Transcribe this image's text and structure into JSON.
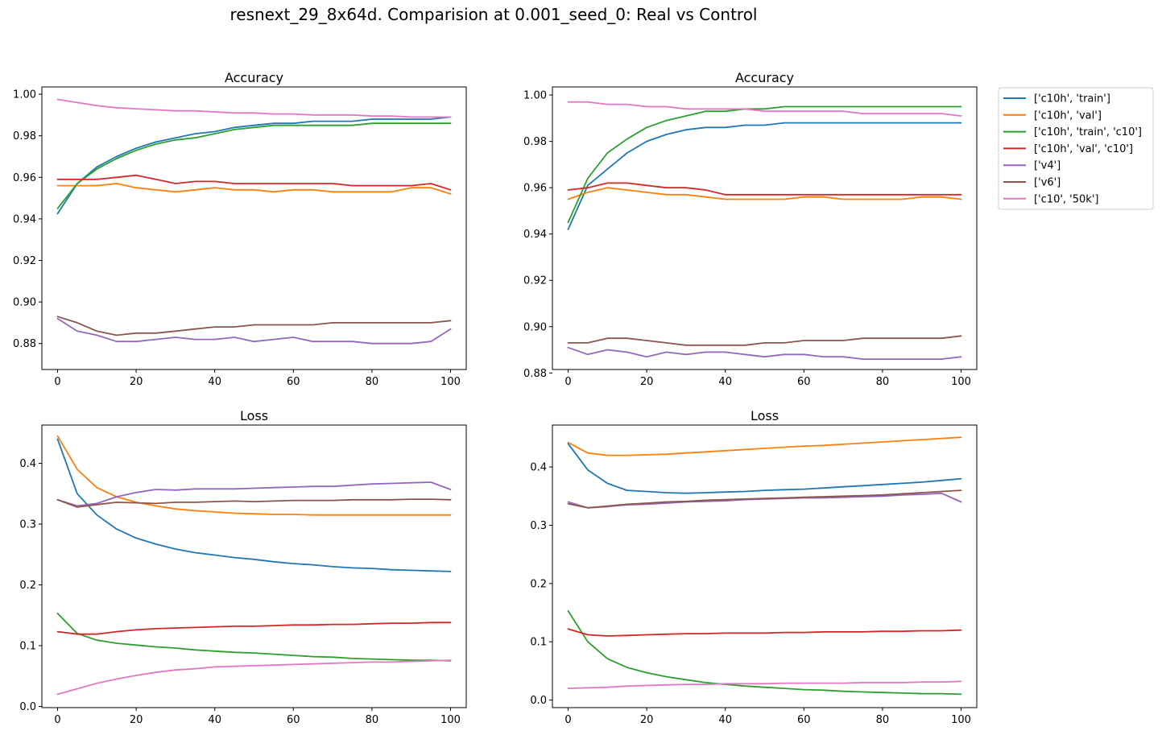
{
  "figure": {
    "suptitle": "resnext_29_8x64d. Comparision at 0.001_seed_0: Real vs Control"
  },
  "legend": {
    "placement": "outside right",
    "entries": [
      {
        "label": "['c10h', 'train']",
        "color": "#1f77b4"
      },
      {
        "label": "['c10h', 'val']",
        "color": "#ff7f0e"
      },
      {
        "label": "['c10h', 'train', 'c10']",
        "color": "#2ca02c"
      },
      {
        "label": "['c10h', 'val', 'c10']",
        "color": "#d62728"
      },
      {
        "label": "['v4']",
        "color": "#9467bd"
      },
      {
        "label": "['v6']",
        "color": "#8c564b"
      },
      {
        "label": "['c10', '50k']",
        "color": "#e377c2"
      }
    ]
  },
  "chart_data": [
    {
      "type": "line",
      "title": "Accuracy",
      "xlabel": "",
      "ylabel": "",
      "xlim": [
        -4,
        104
      ],
      "ylim": [
        0.8675,
        1.0035
      ],
      "xticks": [
        0,
        20,
        40,
        60,
        80,
        100
      ],
      "yticks": [
        0.88,
        0.9,
        0.92,
        0.94,
        0.96,
        0.98,
        1.0
      ],
      "ytick_labels": [
        "0.88",
        "0.90",
        "0.92",
        "0.94",
        "0.96",
        "0.98",
        "1.00"
      ],
      "grid": false,
      "x_samples": [
        0,
        5,
        10,
        15,
        20,
        25,
        30,
        35,
        40,
        45,
        50,
        55,
        60,
        65,
        70,
        75,
        80,
        85,
        90,
        95,
        100
      ],
      "series": [
        {
          "name": "['c10h', 'train']",
          "color": "#1f77b4",
          "values": [
            0.9425,
            0.957,
            0.965,
            0.97,
            0.974,
            0.977,
            0.979,
            0.981,
            0.982,
            0.984,
            0.985,
            0.986,
            0.986,
            0.987,
            0.987,
            0.987,
            0.988,
            0.988,
            0.988,
            0.988,
            0.989
          ]
        },
        {
          "name": "['c10h', 'val']",
          "color": "#ff7f0e",
          "values": [
            0.956,
            0.956,
            0.956,
            0.957,
            0.955,
            0.954,
            0.953,
            0.954,
            0.955,
            0.954,
            0.954,
            0.953,
            0.954,
            0.954,
            0.953,
            0.953,
            0.953,
            0.953,
            0.955,
            0.955,
            0.952
          ]
        },
        {
          "name": "['c10h', 'train', 'c10']",
          "color": "#2ca02c",
          "values": [
            0.945,
            0.957,
            0.964,
            0.969,
            0.973,
            0.976,
            0.978,
            0.979,
            0.981,
            0.983,
            0.984,
            0.985,
            0.985,
            0.985,
            0.985,
            0.985,
            0.986,
            0.986,
            0.986,
            0.986,
            0.986
          ]
        },
        {
          "name": "['c10h', 'val', 'c10']",
          "color": "#d62728",
          "values": [
            0.959,
            0.959,
            0.959,
            0.96,
            0.961,
            0.959,
            0.957,
            0.958,
            0.958,
            0.957,
            0.957,
            0.957,
            0.957,
            0.957,
            0.957,
            0.956,
            0.956,
            0.956,
            0.956,
            0.957,
            0.954
          ]
        },
        {
          "name": "['v4']",
          "color": "#9467bd",
          "values": [
            0.892,
            0.886,
            0.884,
            0.881,
            0.881,
            0.882,
            0.883,
            0.882,
            0.882,
            0.883,
            0.881,
            0.882,
            0.883,
            0.881,
            0.881,
            0.881,
            0.88,
            0.88,
            0.88,
            0.881,
            0.887
          ]
        },
        {
          "name": "['v6']",
          "color": "#8c564b",
          "values": [
            0.893,
            0.89,
            0.886,
            0.884,
            0.885,
            0.885,
            0.886,
            0.887,
            0.888,
            0.888,
            0.889,
            0.889,
            0.889,
            0.889,
            0.89,
            0.89,
            0.89,
            0.89,
            0.89,
            0.89,
            0.891
          ]
        },
        {
          "name": "['c10', '50k']",
          "color": "#e377c2",
          "values": [
            0.9975,
            0.996,
            0.9945,
            0.9935,
            0.993,
            0.9925,
            0.992,
            0.992,
            0.9915,
            0.991,
            0.991,
            0.9905,
            0.9905,
            0.99,
            0.99,
            0.99,
            0.9895,
            0.9895,
            0.989,
            0.989,
            0.989
          ]
        }
      ]
    },
    {
      "type": "line",
      "title": "Accuracy",
      "xlabel": "",
      "ylabel": "",
      "xlim": [
        -4,
        104
      ],
      "ylim": [
        0.8815,
        1.0035
      ],
      "xticks": [
        0,
        20,
        40,
        60,
        80,
        100
      ],
      "yticks": [
        0.88,
        0.9,
        0.92,
        0.94,
        0.96,
        0.98,
        1.0
      ],
      "ytick_labels": [
        "0.88",
        "0.90",
        "0.92",
        "0.94",
        "0.96",
        "0.98",
        "1.00"
      ],
      "grid": false,
      "x_samples": [
        0,
        5,
        10,
        15,
        20,
        25,
        30,
        35,
        40,
        45,
        50,
        55,
        60,
        65,
        70,
        75,
        80,
        85,
        90,
        95,
        100
      ],
      "series": [
        {
          "name": "['c10h', 'train']",
          "color": "#1f77b4",
          "values": [
            0.942,
            0.961,
            0.968,
            0.975,
            0.98,
            0.983,
            0.985,
            0.986,
            0.986,
            0.987,
            0.987,
            0.988,
            0.988,
            0.988,
            0.988,
            0.988,
            0.988,
            0.988,
            0.988,
            0.988,
            0.988
          ]
        },
        {
          "name": "['c10h', 'val']",
          "color": "#ff7f0e",
          "values": [
            0.955,
            0.958,
            0.96,
            0.959,
            0.958,
            0.957,
            0.957,
            0.956,
            0.955,
            0.955,
            0.955,
            0.955,
            0.956,
            0.956,
            0.955,
            0.955,
            0.955,
            0.955,
            0.956,
            0.956,
            0.955
          ]
        },
        {
          "name": "['c10h', 'train', 'c10']",
          "color": "#2ca02c",
          "values": [
            0.945,
            0.964,
            0.975,
            0.981,
            0.986,
            0.989,
            0.991,
            0.993,
            0.993,
            0.994,
            0.994,
            0.995,
            0.995,
            0.995,
            0.995,
            0.995,
            0.995,
            0.995,
            0.995,
            0.995,
            0.995
          ]
        },
        {
          "name": "['c10h', 'val', 'c10']",
          "color": "#d62728",
          "values": [
            0.959,
            0.96,
            0.962,
            0.962,
            0.961,
            0.96,
            0.96,
            0.959,
            0.957,
            0.957,
            0.957,
            0.957,
            0.957,
            0.957,
            0.957,
            0.957,
            0.957,
            0.957,
            0.957,
            0.957,
            0.957
          ]
        },
        {
          "name": "['v4']",
          "color": "#9467bd",
          "values": [
            0.891,
            0.888,
            0.89,
            0.889,
            0.887,
            0.889,
            0.888,
            0.889,
            0.889,
            0.888,
            0.887,
            0.888,
            0.888,
            0.887,
            0.887,
            0.886,
            0.886,
            0.886,
            0.886,
            0.886,
            0.887
          ]
        },
        {
          "name": "['v6']",
          "color": "#8c564b",
          "values": [
            0.893,
            0.893,
            0.895,
            0.895,
            0.894,
            0.893,
            0.892,
            0.892,
            0.892,
            0.892,
            0.893,
            0.893,
            0.894,
            0.894,
            0.894,
            0.895,
            0.895,
            0.895,
            0.895,
            0.895,
            0.896
          ]
        },
        {
          "name": "['c10', '50k']",
          "color": "#e377c2",
          "values": [
            0.997,
            0.997,
            0.996,
            0.996,
            0.995,
            0.995,
            0.994,
            0.994,
            0.994,
            0.994,
            0.993,
            0.993,
            0.993,
            0.993,
            0.993,
            0.992,
            0.992,
            0.992,
            0.992,
            0.992,
            0.991
          ]
        }
      ]
    },
    {
      "type": "line",
      "title": "Loss",
      "xlabel": "",
      "ylabel": "",
      "xlim": [
        -4,
        104
      ],
      "ylim": [
        -0.002,
        0.463
      ],
      "xticks": [
        0,
        20,
        40,
        60,
        80,
        100
      ],
      "yticks": [
        0.0,
        0.1,
        0.2,
        0.3,
        0.4
      ],
      "ytick_labels": [
        "0.0",
        "0.1",
        "0.2",
        "0.3",
        "0.4"
      ],
      "grid": false,
      "x_samples": [
        0,
        5,
        10,
        15,
        20,
        25,
        30,
        35,
        40,
        45,
        50,
        55,
        60,
        65,
        70,
        75,
        80,
        85,
        90,
        95,
        100
      ],
      "series": [
        {
          "name": "['c10h', 'train']",
          "color": "#1f77b4",
          "values": [
            0.44,
            0.35,
            0.315,
            0.292,
            0.277,
            0.267,
            0.259,
            0.253,
            0.249,
            0.245,
            0.242,
            0.238,
            0.235,
            0.233,
            0.23,
            0.228,
            0.227,
            0.225,
            0.224,
            0.223,
            0.222
          ]
        },
        {
          "name": "['c10h', 'val']",
          "color": "#ff7f0e",
          "values": [
            0.445,
            0.39,
            0.36,
            0.345,
            0.336,
            0.33,
            0.325,
            0.322,
            0.32,
            0.318,
            0.317,
            0.316,
            0.316,
            0.315,
            0.315,
            0.315,
            0.315,
            0.315,
            0.315,
            0.315,
            0.315
          ]
        },
        {
          "name": "['c10h', 'train', 'c10']",
          "color": "#2ca02c",
          "values": [
            0.153,
            0.12,
            0.109,
            0.104,
            0.101,
            0.098,
            0.096,
            0.093,
            0.091,
            0.089,
            0.088,
            0.086,
            0.084,
            0.082,
            0.081,
            0.079,
            0.078,
            0.077,
            0.076,
            0.076,
            0.075
          ]
        },
        {
          "name": "['c10h', 'val', 'c10']",
          "color": "#d62728",
          "values": [
            0.123,
            0.119,
            0.119,
            0.123,
            0.126,
            0.128,
            0.129,
            0.13,
            0.131,
            0.132,
            0.132,
            0.133,
            0.134,
            0.134,
            0.135,
            0.135,
            0.136,
            0.137,
            0.137,
            0.138,
            0.138
          ]
        },
        {
          "name": "['v4']",
          "color": "#9467bd",
          "values": [
            0.34,
            0.33,
            0.334,
            0.345,
            0.352,
            0.357,
            0.356,
            0.358,
            0.358,
            0.358,
            0.359,
            0.36,
            0.361,
            0.362,
            0.362,
            0.364,
            0.366,
            0.367,
            0.368,
            0.369,
            0.357
          ]
        },
        {
          "name": "['v6']",
          "color": "#8c564b",
          "values": [
            0.34,
            0.328,
            0.332,
            0.336,
            0.335,
            0.334,
            0.336,
            0.336,
            0.337,
            0.338,
            0.337,
            0.338,
            0.339,
            0.339,
            0.339,
            0.34,
            0.34,
            0.34,
            0.341,
            0.341,
            0.34
          ]
        },
        {
          "name": "['c10', '50k']",
          "color": "#e377c2",
          "values": [
            0.02,
            0.029,
            0.038,
            0.045,
            0.051,
            0.056,
            0.06,
            0.062,
            0.065,
            0.066,
            0.067,
            0.068,
            0.069,
            0.07,
            0.071,
            0.072,
            0.073,
            0.073,
            0.074,
            0.075,
            0.076
          ]
        }
      ]
    },
    {
      "type": "line",
      "title": "Loss",
      "xlabel": "",
      "ylabel": "",
      "xlim": [
        -4,
        104
      ],
      "ylim": [
        -0.013,
        0.472
      ],
      "xticks": [
        0,
        20,
        40,
        60,
        80,
        100
      ],
      "yticks": [
        0.0,
        0.1,
        0.2,
        0.3,
        0.4
      ],
      "ytick_labels": [
        "0.0",
        "0.1",
        "0.2",
        "0.3",
        "0.4"
      ],
      "grid": false,
      "x_samples": [
        0,
        5,
        10,
        15,
        20,
        25,
        30,
        35,
        40,
        45,
        50,
        55,
        60,
        65,
        70,
        75,
        80,
        85,
        90,
        95,
        100
      ],
      "series": [
        {
          "name": "['c10h', 'train']",
          "color": "#1f77b4",
          "values": [
            0.44,
            0.395,
            0.372,
            0.36,
            0.358,
            0.356,
            0.355,
            0.356,
            0.357,
            0.358,
            0.36,
            0.361,
            0.362,
            0.364,
            0.366,
            0.368,
            0.37,
            0.372,
            0.374,
            0.377,
            0.38
          ]
        },
        {
          "name": "['c10h', 'val']",
          "color": "#ff7f0e",
          "values": [
            0.442,
            0.424,
            0.42,
            0.42,
            0.421,
            0.422,
            0.424,
            0.426,
            0.428,
            0.43,
            0.432,
            0.434,
            0.436,
            0.437,
            0.439,
            0.441,
            0.443,
            0.445,
            0.447,
            0.449,
            0.451
          ]
        },
        {
          "name": "['c10h', 'train', 'c10']",
          "color": "#2ca02c",
          "values": [
            0.153,
            0.1,
            0.071,
            0.056,
            0.047,
            0.04,
            0.035,
            0.03,
            0.027,
            0.024,
            0.022,
            0.02,
            0.018,
            0.017,
            0.015,
            0.014,
            0.013,
            0.012,
            0.011,
            0.011,
            0.01
          ]
        },
        {
          "name": "['c10h', 'val', 'c10']",
          "color": "#d62728",
          "values": [
            0.122,
            0.112,
            0.11,
            0.111,
            0.112,
            0.113,
            0.114,
            0.114,
            0.115,
            0.115,
            0.115,
            0.116,
            0.116,
            0.117,
            0.117,
            0.117,
            0.118,
            0.118,
            0.119,
            0.119,
            0.12
          ]
        },
        {
          "name": "['v4']",
          "color": "#9467bd",
          "values": [
            0.34,
            0.33,
            0.332,
            0.335,
            0.336,
            0.338,
            0.34,
            0.341,
            0.342,
            0.344,
            0.345,
            0.346,
            0.347,
            0.347,
            0.348,
            0.349,
            0.35,
            0.352,
            0.353,
            0.355,
            0.34
          ]
        },
        {
          "name": "['v6']",
          "color": "#8c564b",
          "values": [
            0.337,
            0.33,
            0.333,
            0.336,
            0.338,
            0.34,
            0.341,
            0.343,
            0.344,
            0.345,
            0.346,
            0.347,
            0.348,
            0.349,
            0.35,
            0.351,
            0.352,
            0.354,
            0.356,
            0.358,
            0.36
          ]
        },
        {
          "name": "['c10', '50k']",
          "color": "#e377c2",
          "values": [
            0.02,
            0.021,
            0.022,
            0.024,
            0.025,
            0.026,
            0.027,
            0.027,
            0.028,
            0.028,
            0.028,
            0.029,
            0.029,
            0.029,
            0.029,
            0.03,
            0.03,
            0.03,
            0.031,
            0.031,
            0.032
          ]
        }
      ]
    }
  ]
}
